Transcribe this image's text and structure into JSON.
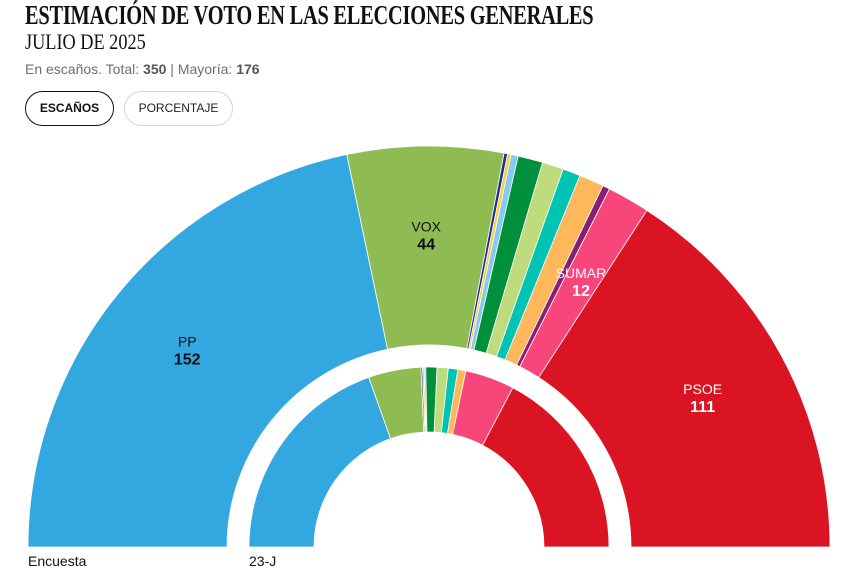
{
  "header": {
    "title": "ESTIMACIÓN DE VOTO EN LAS ELECCIONES GENERALES",
    "subtitle": "JULIO DE 2025",
    "caption_prefix": "En escaños. Total: ",
    "total": "350",
    "caption_sep": " | Mayoría: ",
    "majority": "176"
  },
  "toggle": {
    "options": [
      {
        "label": "ESCAÑOS",
        "active": true
      },
      {
        "label": "PORCENTAJE",
        "active": false
      }
    ]
  },
  "chart_data": {
    "type": "hemicycle",
    "title": "ESTIMACIÓN DE VOTO EN LAS ELECCIONES GENERALES",
    "subtitle": "JULIO DE 2025",
    "total_seats": 350,
    "majority": 176,
    "unit": "escaños",
    "rings": [
      {
        "name": "Encuesta",
        "position": "outer",
        "segments": [
          {
            "label": "PP",
            "value": 152,
            "color": "#33A7DF",
            "show_label": true,
            "label_color": "#111111"
          },
          {
            "label": "VOX",
            "value": 44,
            "color": "#8FBC52",
            "show_label": true,
            "label_color": "#111111"
          },
          {
            "label": "",
            "value": 1,
            "color": "#1F2F8F",
            "show_label": false
          },
          {
            "label": "",
            "value": 1,
            "color": "#FFCC33",
            "show_label": false
          },
          {
            "label": "",
            "value": 2,
            "color": "#85CBEF",
            "show_label": false
          },
          {
            "label": "",
            "value": 7,
            "color": "#008F3A",
            "show_label": false
          },
          {
            "label": "",
            "value": 6,
            "color": "#BFDC7C",
            "show_label": false
          },
          {
            "label": "",
            "value": 5,
            "color": "#00C4B3",
            "show_label": false
          },
          {
            "label": "",
            "value": 7,
            "color": "#FFB75C",
            "show_label": false
          },
          {
            "label": "",
            "value": 2,
            "color": "#8A1F72",
            "show_label": false
          },
          {
            "label": "SUMAR",
            "value": 12,
            "color": "#F8457A",
            "show_label": true,
            "label_color": "#FFFFFF"
          },
          {
            "label": "PSOE",
            "value": 111,
            "color": "#DA1422",
            "show_label": true,
            "label_color": "#FFFFFF"
          }
        ]
      },
      {
        "name": "23-J",
        "position": "inner",
        "segments": [
          {
            "label": "PP",
            "value": 137,
            "color": "#33A7DF",
            "show_label": false
          },
          {
            "label": "VOX",
            "value": 33,
            "color": "#8FBC52",
            "show_label": false
          },
          {
            "label": "",
            "value": 1,
            "color": "#1F2F8F",
            "show_label": false
          },
          {
            "label": "",
            "value": 1,
            "color": "#FFCC33",
            "show_label": false
          },
          {
            "label": "",
            "value": 1,
            "color": "#85CBEF",
            "show_label": false
          },
          {
            "label": "",
            "value": 7,
            "color": "#008F3A",
            "show_label": false
          },
          {
            "label": "",
            "value": 7,
            "color": "#BFDC7C",
            "show_label": false
          },
          {
            "label": "",
            "value": 6,
            "color": "#00C4B3",
            "show_label": false
          },
          {
            "label": "",
            "value": 5,
            "color": "#FFB75C",
            "show_label": false
          },
          {
            "label": "SUMAR",
            "value": 31,
            "color": "#F8457A",
            "show_label": false
          },
          {
            "label": "PSOE",
            "value": 121,
            "color": "#DA1422",
            "show_label": false
          }
        ]
      }
    ]
  }
}
